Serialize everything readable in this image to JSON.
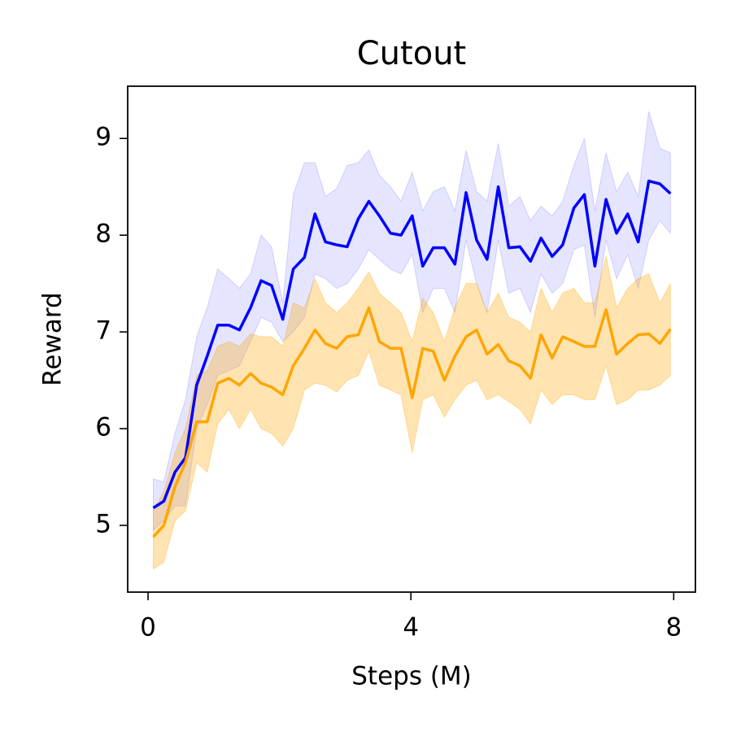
{
  "chart_data": {
    "type": "line",
    "title": "Cutout",
    "xlabel": "Steps (M)",
    "ylabel": "Reward",
    "x": [
      0.08,
      0.24,
      0.41,
      0.57,
      0.74,
      0.9,
      1.06,
      1.23,
      1.39,
      1.56,
      1.72,
      1.88,
      2.05,
      2.21,
      2.38,
      2.54,
      2.7,
      2.87,
      3.03,
      3.2,
      3.36,
      3.52,
      3.69,
      3.85,
      4.02,
      4.18,
      4.34,
      4.51,
      4.67,
      4.84,
      5.0,
      5.16,
      5.33,
      5.49,
      5.66,
      5.82,
      5.98,
      6.15,
      6.31,
      6.48,
      6.64,
      6.8,
      6.97,
      7.13,
      7.3,
      7.46,
      7.62,
      7.79,
      7.95
    ],
    "series": [
      {
        "color": "#0000ff",
        "values": [
          5.18,
          5.25,
          5.55,
          5.7,
          6.45,
          6.75,
          7.07,
          7.07,
          7.02,
          7.25,
          7.53,
          7.48,
          7.13,
          7.65,
          7.77,
          8.22,
          7.93,
          7.9,
          7.88,
          8.17,
          8.35,
          8.2,
          8.02,
          8.0,
          8.2,
          7.68,
          7.87,
          7.87,
          7.7,
          8.44,
          7.95,
          7.75,
          8.5,
          7.87,
          7.88,
          7.73,
          7.97,
          7.78,
          7.9,
          8.28,
          8.42,
          7.68,
          8.37,
          8.02,
          8.22,
          7.93,
          8.56,
          8.53,
          8.43
        ],
        "lower": [
          4.95,
          5.05,
          5.2,
          5.2,
          6.0,
          6.25,
          6.55,
          6.6,
          6.65,
          6.9,
          7.15,
          7.1,
          6.9,
          7.0,
          7.15,
          7.6,
          7.55,
          7.45,
          7.5,
          7.65,
          7.85,
          7.75,
          7.65,
          7.6,
          7.8,
          7.2,
          7.45,
          7.45,
          7.2,
          7.95,
          7.5,
          7.2,
          7.95,
          7.4,
          7.45,
          7.2,
          7.6,
          7.4,
          7.5,
          7.85,
          7.9,
          7.15,
          7.95,
          7.55,
          7.8,
          7.45,
          7.95,
          8.15,
          8.02
        ],
        "upper": [
          5.48,
          5.45,
          5.95,
          6.3,
          6.95,
          7.25,
          7.65,
          7.55,
          7.45,
          7.6,
          8.0,
          7.88,
          7.3,
          8.42,
          8.75,
          8.75,
          8.4,
          8.48,
          8.72,
          8.75,
          8.88,
          8.62,
          8.5,
          8.35,
          8.65,
          8.25,
          8.45,
          8.5,
          8.25,
          8.88,
          8.45,
          8.35,
          8.95,
          8.3,
          8.4,
          8.15,
          8.3,
          8.2,
          8.35,
          8.72,
          9.0,
          8.25,
          8.85,
          8.45,
          8.65,
          8.4,
          9.28,
          8.9,
          8.85
        ]
      },
      {
        "color": "#ffa500",
        "values": [
          4.88,
          5.0,
          5.4,
          5.65,
          6.07,
          6.07,
          6.47,
          6.52,
          6.45,
          6.57,
          6.47,
          6.43,
          6.35,
          6.65,
          6.83,
          7.02,
          6.88,
          6.83,
          6.95,
          6.97,
          7.25,
          6.9,
          6.83,
          6.83,
          6.32,
          6.83,
          6.8,
          6.5,
          6.75,
          6.95,
          7.02,
          6.77,
          6.87,
          6.7,
          6.65,
          6.52,
          6.97,
          6.73,
          6.95,
          6.9,
          6.85,
          6.85,
          7.23,
          6.77,
          6.88,
          6.97,
          6.98,
          6.88,
          7.03
        ],
        "lower": [
          4.55,
          4.62,
          5.05,
          5.15,
          5.65,
          5.55,
          6.05,
          6.2,
          6.0,
          6.2,
          6.0,
          5.95,
          5.82,
          6.0,
          6.4,
          6.47,
          6.45,
          6.38,
          6.5,
          6.55,
          6.8,
          6.45,
          6.4,
          6.35,
          5.75,
          6.3,
          6.35,
          6.12,
          6.3,
          6.45,
          6.5,
          6.3,
          6.35,
          6.28,
          6.2,
          6.05,
          6.4,
          6.25,
          6.35,
          6.35,
          6.3,
          6.3,
          6.65,
          6.25,
          6.3,
          6.4,
          6.4,
          6.45,
          6.55
        ],
        "upper": [
          5.15,
          5.35,
          5.75,
          6.0,
          6.55,
          6.6,
          6.85,
          6.9,
          6.85,
          6.98,
          6.95,
          6.95,
          6.85,
          7.3,
          7.25,
          7.55,
          7.3,
          7.2,
          7.3,
          7.45,
          7.62,
          7.4,
          7.3,
          7.2,
          6.9,
          7.35,
          7.2,
          6.9,
          7.25,
          7.5,
          7.5,
          7.2,
          7.4,
          7.15,
          7.1,
          7.0,
          7.45,
          7.2,
          7.4,
          7.45,
          7.3,
          7.3,
          7.78,
          7.25,
          7.45,
          7.55,
          7.6,
          7.3,
          7.5
        ]
      }
    ],
    "xlim": [
      -0.31,
      8.33
    ],
    "ylim": [
      4.31,
      9.54
    ],
    "xticks": [
      0,
      4,
      8
    ],
    "yticks": [
      5,
      6,
      7,
      8,
      9
    ]
  }
}
